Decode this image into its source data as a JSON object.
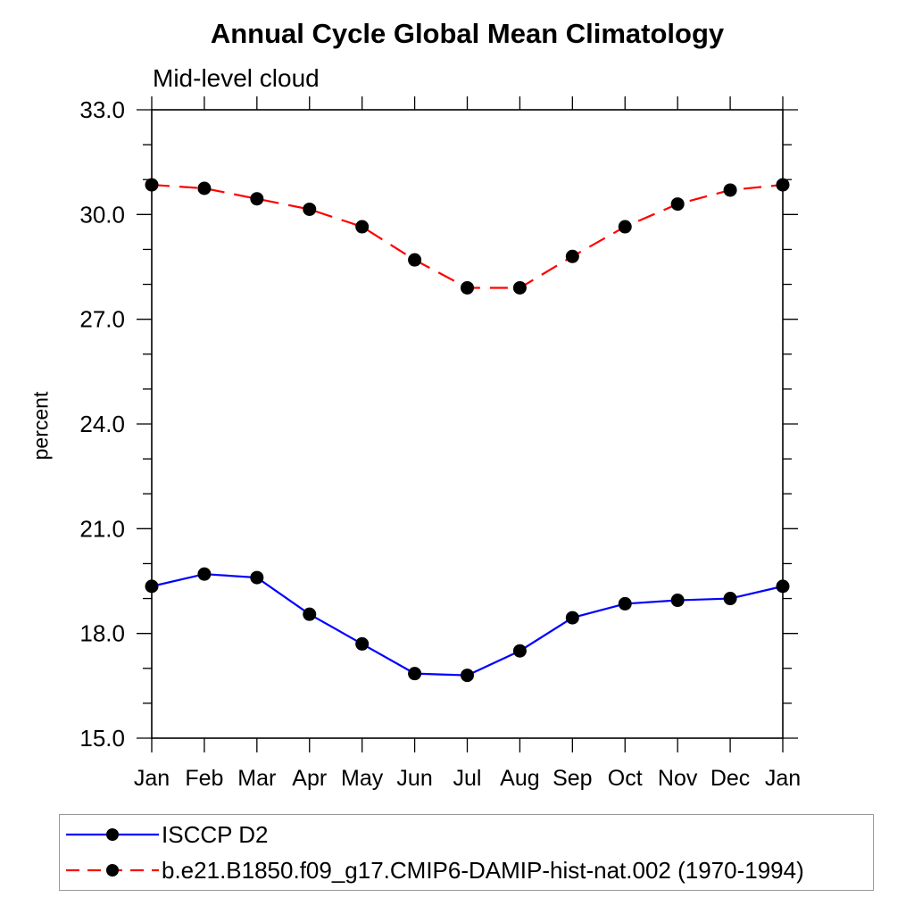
{
  "colors": {
    "axis": "#000000",
    "marker": "#000000",
    "series_blue": "#0000ff",
    "series_red": "#ff0000",
    "legend_border": "#999999",
    "background": "#ffffff"
  },
  "chart_data": {
    "type": "line",
    "title": "Annual Cycle Global Mean Climatology",
    "subtitle": "Mid-level cloud",
    "xlabel": "",
    "ylabel": "percent",
    "categories": [
      "Jan",
      "Feb",
      "Mar",
      "Apr",
      "May",
      "Jun",
      "Jul",
      "Aug",
      "Sep",
      "Oct",
      "Nov",
      "Dec",
      "Jan"
    ],
    "ylim": [
      15.0,
      33.0
    ],
    "yticks_major": [
      15.0,
      18.0,
      21.0,
      24.0,
      27.0,
      30.0,
      33.0
    ],
    "ytick_minor_step": 1.0,
    "grid": false,
    "legend_position": "bottom-left",
    "series": [
      {
        "name": "ISCCP D2",
        "color": "#0000ff",
        "line_style": "solid",
        "marker": "circle",
        "marker_color": "#000000",
        "values": [
          19.35,
          19.7,
          19.6,
          18.55,
          17.7,
          16.85,
          16.8,
          17.5,
          18.45,
          18.85,
          18.95,
          19.0,
          19.35
        ]
      },
      {
        "name": "b.e21.B1850.f09_g17.CMIP6-DAMIP-hist-nat.002 (1970-1994)",
        "color": "#ff0000",
        "line_style": "dashed",
        "marker": "circle",
        "marker_color": "#000000",
        "values": [
          30.85,
          30.75,
          30.45,
          30.15,
          29.65,
          28.7,
          27.9,
          27.9,
          28.8,
          29.65,
          30.3,
          30.7,
          30.85
        ]
      }
    ]
  }
}
